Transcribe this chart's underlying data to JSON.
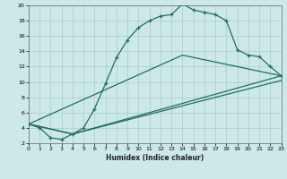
{
  "xlabel": "Humidex (Indice chaleur)",
  "bg_color": "#cde8e8",
  "grid_color": "#a8cccc",
  "line_color": "#1e6e62",
  "xlim": [
    0,
    23
  ],
  "ylim": [
    2,
    20
  ],
  "xticks": [
    0,
    1,
    2,
    3,
    4,
    5,
    6,
    7,
    8,
    9,
    10,
    11,
    12,
    13,
    14,
    15,
    16,
    17,
    18,
    19,
    20,
    21,
    22,
    23
  ],
  "yticks": [
    2,
    4,
    6,
    8,
    10,
    12,
    14,
    16,
    18,
    20
  ],
  "line1_x": [
    0,
    1,
    2,
    3,
    4,
    5,
    6,
    7,
    8,
    9,
    10,
    11,
    12,
    13,
    14,
    15,
    16,
    17,
    18,
    19,
    20,
    21,
    22,
    23
  ],
  "line1_y": [
    4.5,
    4.0,
    2.7,
    2.5,
    3.2,
    4.0,
    6.5,
    9.8,
    13.2,
    15.5,
    17.1,
    18.0,
    18.6,
    18.8,
    20.2,
    19.4,
    19.1,
    18.8,
    18.0,
    14.2,
    13.5,
    13.3,
    12.0,
    10.8
  ],
  "line2_x": [
    0,
    4,
    23
  ],
  "line2_y": [
    4.5,
    3.2,
    10.8
  ],
  "line3_x": [
    0,
    4,
    23
  ],
  "line3_y": [
    4.5,
    3.2,
    10.2
  ],
  "line4_x": [
    0,
    14,
    23
  ],
  "line4_y": [
    4.5,
    13.5,
    10.8
  ]
}
